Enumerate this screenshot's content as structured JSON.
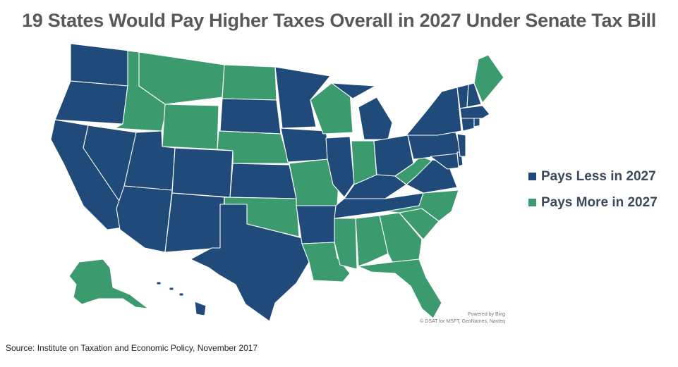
{
  "title": "19 States Would Pay Higher Taxes Overall in 2027 Under Senate Tax Bill",
  "colors": {
    "pays_less": "#1f4a7a",
    "pays_more": "#3b9a6e"
  },
  "legend": {
    "items": [
      {
        "label": "Pays Less in 2027",
        "color": "#1f4a7a"
      },
      {
        "label": "Pays More in 2027",
        "color": "#3b9a6e"
      }
    ]
  },
  "map_attribution": {
    "powered_by": "Powered by Bing",
    "copyright": "© DSAT for MSFT, GeoNames, Navteq"
  },
  "source": "Source: Institute on Taxation and Economic Policy, November 2017",
  "states": {
    "pays_less": [
      "WA",
      "OR",
      "CA",
      "NV",
      "UT",
      "AZ",
      "CO",
      "NM",
      "SD",
      "KS",
      "TX",
      "MN",
      "IA",
      "AR",
      "IL",
      "MI",
      "KY",
      "TN",
      "OH",
      "PA",
      "VA",
      "NY",
      "VT",
      "NH",
      "MA",
      "CT",
      "RI",
      "NJ",
      "DE",
      "MD",
      "HI"
    ],
    "pays_more": [
      "ID",
      "MT",
      "WY",
      "ND",
      "NE",
      "OK",
      "MO",
      "LA",
      "WI",
      "IN",
      "MS",
      "AL",
      "GA",
      "FL",
      "SC",
      "NC",
      "WV",
      "ME",
      "AK"
    ]
  }
}
